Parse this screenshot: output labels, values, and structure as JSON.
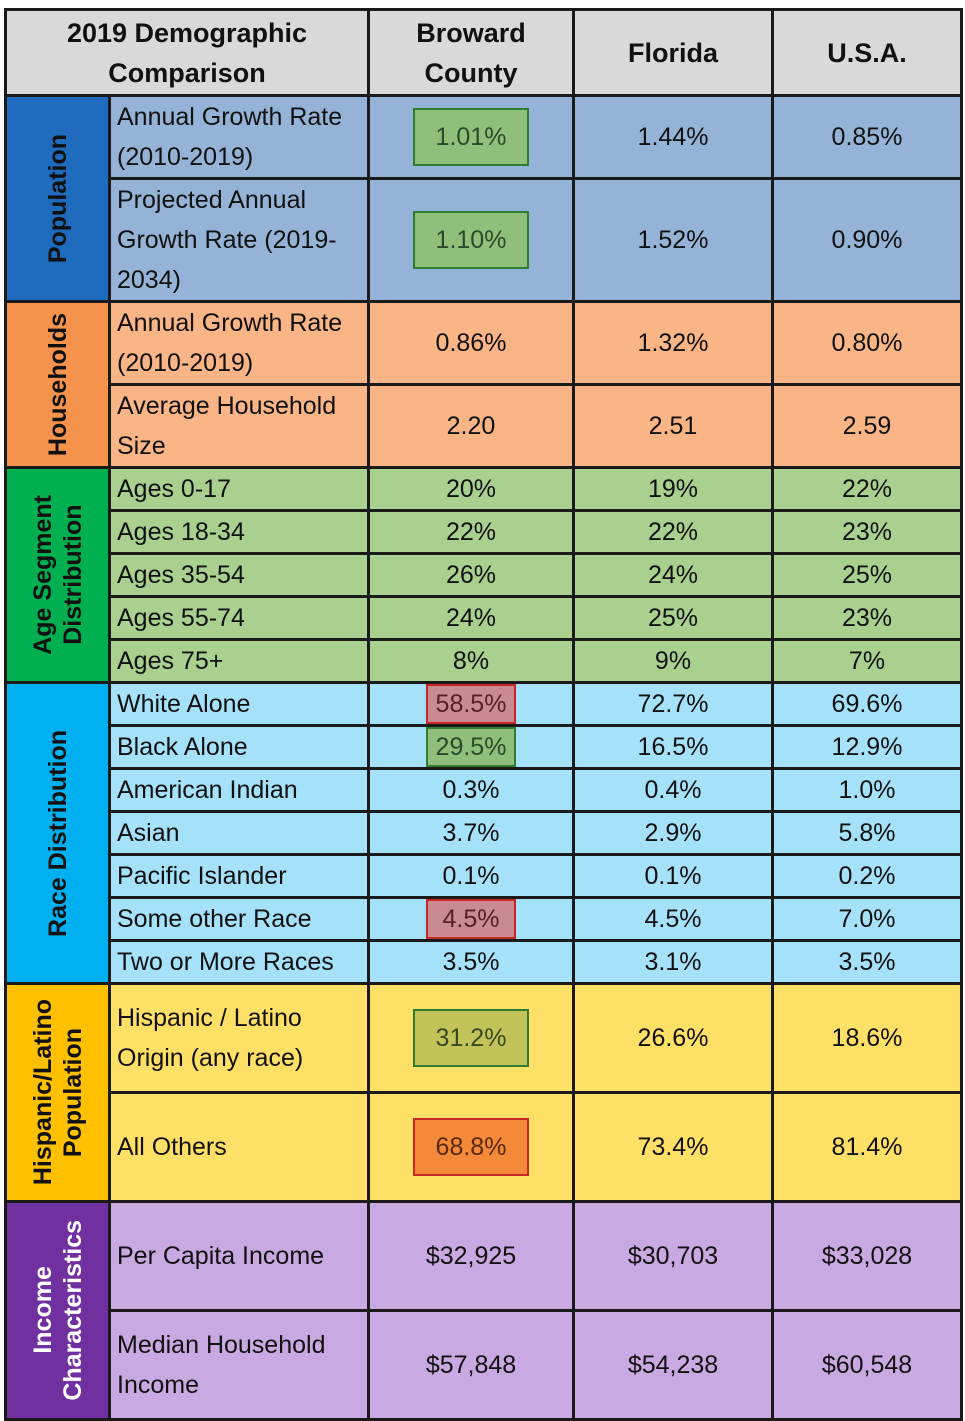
{
  "header": {
    "title": "2019 Demographic Comparison",
    "col1": "Broward County",
    "col2": "Florida",
    "col3": "U.S.A."
  },
  "colors": {
    "population": "#95b3d7",
    "households": "#f9b586",
    "age": "#a9d08e",
    "race": "#a5e1f8",
    "hispanic": "#ffe066",
    "income": "#c9a9e2"
  },
  "sections": {
    "population": {
      "label": "Population",
      "rows": [
        {
          "metric": "Annual Growth Rate (2010-2019)",
          "broward": "1.01%",
          "florida": "1.44%",
          "usa": "0.85%"
        },
        {
          "metric": "Projected Annual Growth Rate (2019-2034)",
          "broward": "1.10%",
          "florida": "1.52%",
          "usa": "0.90%"
        }
      ]
    },
    "households": {
      "label": "Households",
      "rows": [
        {
          "metric": "Annual Growth Rate (2010-2019)",
          "broward": "0.86%",
          "florida": "1.32%",
          "usa": "0.80%"
        },
        {
          "metric": "Average Household Size",
          "broward": "2.20",
          "florida": "2.51",
          "usa": "2.59"
        }
      ]
    },
    "age": {
      "label": "Age Segment\nDistribution",
      "rows": [
        {
          "metric": "Ages 0-17",
          "broward": "20%",
          "florida": "19%",
          "usa": "22%"
        },
        {
          "metric": "Ages 18-34",
          "broward": "22%",
          "florida": "22%",
          "usa": "23%"
        },
        {
          "metric": "Ages 35-54",
          "broward": "26%",
          "florida": "24%",
          "usa": "25%"
        },
        {
          "metric": "Ages 55-74",
          "broward": "24%",
          "florida": "25%",
          "usa": "23%"
        },
        {
          "metric": "Ages 75+",
          "broward": "8%",
          "florida": "9%",
          "usa": "7%"
        }
      ]
    },
    "race": {
      "label": "Race Distribution",
      "rows": [
        {
          "metric": "White Alone",
          "broward": "58.5%",
          "florida": "72.7%",
          "usa": "69.6%"
        },
        {
          "metric": "Black Alone",
          "broward": "29.5%",
          "florida": "16.5%",
          "usa": "12.9%"
        },
        {
          "metric": "American Indian",
          "broward": "0.3%",
          "florida": "0.4%",
          "usa": "1.0%"
        },
        {
          "metric": "Asian",
          "broward": "3.7%",
          "florida": "2.9%",
          "usa": "5.8%"
        },
        {
          "metric": "Pacific Islander",
          "broward": "0.1%",
          "florida": "0.1%",
          "usa": "0.2%"
        },
        {
          "metric": "Some other Race",
          "broward": "4.5%",
          "florida": "4.5%",
          "usa": "7.0%"
        },
        {
          "metric": "Two or More Races",
          "broward": "3.5%",
          "florida": "3.1%",
          "usa": "3.5%"
        }
      ]
    },
    "hispanic": {
      "label": "Hispanic/Latino\nPopulation",
      "rows": [
        {
          "metric": "Hispanic / Latino Origin (any race)",
          "broward": "31.2%",
          "florida": "26.6%",
          "usa": "18.6%"
        },
        {
          "metric": "All Others",
          "broward": "68.8%",
          "florida": "73.4%",
          "usa": "81.4%"
        }
      ]
    },
    "income": {
      "label": "Income\nCharacteristics",
      "rows": [
        {
          "metric": "Per Capita Income",
          "broward": "$32,925",
          "florida": "$30,703",
          "usa": "$33,028"
        },
        {
          "metric": "Median Household Income",
          "broward": "$57,848",
          "florida": "$54,238",
          "usa": "$60,548"
        }
      ]
    }
  }
}
